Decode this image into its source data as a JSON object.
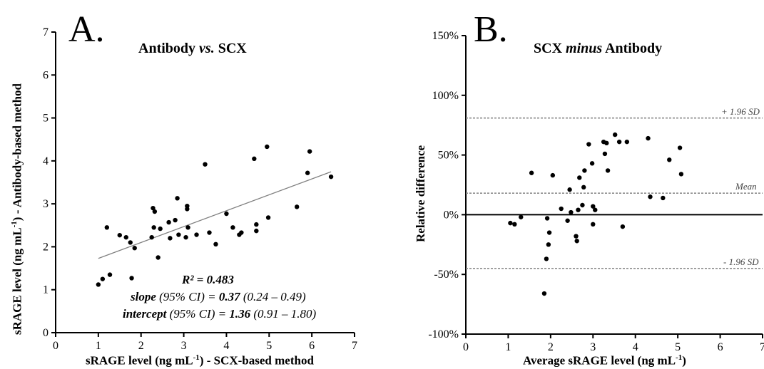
{
  "chart_data": [
    {
      "type": "scatter",
      "panel_letter": "A.",
      "title": "Antibody vs. SCX",
      "title_parts": [
        "Antibody ",
        "vs.",
        " SCX"
      ],
      "xlabel_parts": [
        "sRAGE level (ng mL",
        "-1",
        ") - SCX-based method"
      ],
      "ylabel_parts": [
        "sRAGE level (ng mL",
        "-1",
        ") - Antibody-based method"
      ],
      "xlim": [
        0,
        7
      ],
      "ylim": [
        0,
        7
      ],
      "xticks": [
        "0",
        "1",
        "2",
        "3",
        "4",
        "5",
        "6",
        "7"
      ],
      "yticks": [
        "0",
        "1",
        "2",
        "3",
        "4",
        "5",
        "6",
        "7"
      ],
      "grid": false,
      "points": [
        [
          1.0,
          1.12
        ],
        [
          1.1,
          1.25
        ],
        [
          1.2,
          2.45
        ],
        [
          1.27,
          1.35
        ],
        [
          1.5,
          2.27
        ],
        [
          1.65,
          2.22
        ],
        [
          1.75,
          2.1
        ],
        [
          1.78,
          1.27
        ],
        [
          1.85,
          1.97
        ],
        [
          2.25,
          2.22
        ],
        [
          2.28,
          2.9
        ],
        [
          2.3,
          2.45
        ],
        [
          2.32,
          2.82
        ],
        [
          2.4,
          1.75
        ],
        [
          2.45,
          2.42
        ],
        [
          2.65,
          2.57
        ],
        [
          2.68,
          2.2
        ],
        [
          2.8,
          2.62
        ],
        [
          2.85,
          3.13
        ],
        [
          2.88,
          2.28
        ],
        [
          3.05,
          2.22
        ],
        [
          3.08,
          2.95
        ],
        [
          3.08,
          2.88
        ],
        [
          3.1,
          2.45
        ],
        [
          3.3,
          2.28
        ],
        [
          3.5,
          3.92
        ],
        [
          3.6,
          2.33
        ],
        [
          3.75,
          2.06
        ],
        [
          4.0,
          2.77
        ],
        [
          4.15,
          2.45
        ],
        [
          4.3,
          2.28
        ],
        [
          4.35,
          2.33
        ],
        [
          4.65,
          4.05
        ],
        [
          4.7,
          2.37
        ],
        [
          4.7,
          2.52
        ],
        [
          4.95,
          4.33
        ],
        [
          4.98,
          2.68
        ],
        [
          5.65,
          2.93
        ],
        [
          5.9,
          3.72
        ],
        [
          5.95,
          4.22
        ],
        [
          6.45,
          3.63
        ]
      ],
      "regression_line": {
        "x": [
          1.0,
          6.45
        ],
        "slope": 0.37,
        "intercept": 1.36
      },
      "annotations": {
        "r2": "R² = 0.483",
        "slope_label": "slope",
        "slope_ci_label": " (95% CI) = ",
        "slope_value": "0.37",
        "slope_ci": " (0.24 – 0.49)",
        "intercept_label": "intercept",
        "intercept_ci_label": " (95% CI) = ",
        "intercept_value": "1.36",
        "intercept_ci": " (0.91 – 1.80)"
      },
      "colors": {
        "points": "#000000",
        "regression": "#808080"
      }
    },
    {
      "type": "scatter",
      "panel_letter": "B.",
      "title": "SCX minus Antibody",
      "title_parts": [
        "SCX ",
        "minus",
        " Antibody"
      ],
      "xlabel_parts": [
        "Average sRAGE level (ng mL",
        "-1",
        ")"
      ],
      "ylabel": "Relative difference",
      "xlim": [
        0,
        7
      ],
      "ylim": [
        -100,
        150
      ],
      "xticks": [
        "0",
        "1",
        "2",
        "3",
        "4",
        "5",
        "6",
        "7"
      ],
      "yticks": [
        "-100%",
        "-50%",
        "0%",
        "50%",
        "100%",
        "150%"
      ],
      "grid": false,
      "points": [
        [
          1.05,
          -7
        ],
        [
          1.15,
          -8
        ],
        [
          1.3,
          -2
        ],
        [
          1.55,
          35
        ],
        [
          1.85,
          -66
        ],
        [
          1.9,
          -37
        ],
        [
          1.92,
          -3
        ],
        [
          1.95,
          -25
        ],
        [
          1.97,
          -15
        ],
        [
          2.05,
          33
        ],
        [
          2.25,
          5
        ],
        [
          2.4,
          -5
        ],
        [
          2.45,
          21
        ],
        [
          2.48,
          2
        ],
        [
          2.6,
          -18
        ],
        [
          2.62,
          -22
        ],
        [
          2.65,
          4
        ],
        [
          2.68,
          31
        ],
        [
          2.75,
          8
        ],
        [
          2.78,
          23
        ],
        [
          2.8,
          37
        ],
        [
          2.9,
          59
        ],
        [
          2.98,
          43
        ],
        [
          3.0,
          -8
        ],
        [
          3.0,
          7
        ],
        [
          3.05,
          4
        ],
        [
          3.25,
          61
        ],
        [
          3.28,
          51
        ],
        [
          3.32,
          60
        ],
        [
          3.35,
          37
        ],
        [
          3.52,
          67
        ],
        [
          3.62,
          61
        ],
        [
          3.7,
          -10
        ],
        [
          3.8,
          61
        ],
        [
          4.3,
          64
        ],
        [
          4.35,
          15
        ],
        [
          4.65,
          14
        ],
        [
          4.8,
          46
        ],
        [
          5.05,
          56
        ],
        [
          5.08,
          34
        ]
      ],
      "reference_lines": [
        {
          "name": "+ 1.96 SD",
          "value": 81
        },
        {
          "name": "Mean",
          "value": 18
        },
        {
          "name": "- 1.96 SD",
          "value": -45
        }
      ],
      "zero_line": 0,
      "colors": {
        "points": "#000000",
        "reference": "#8c8c8c",
        "zero": "#000000"
      }
    }
  ]
}
